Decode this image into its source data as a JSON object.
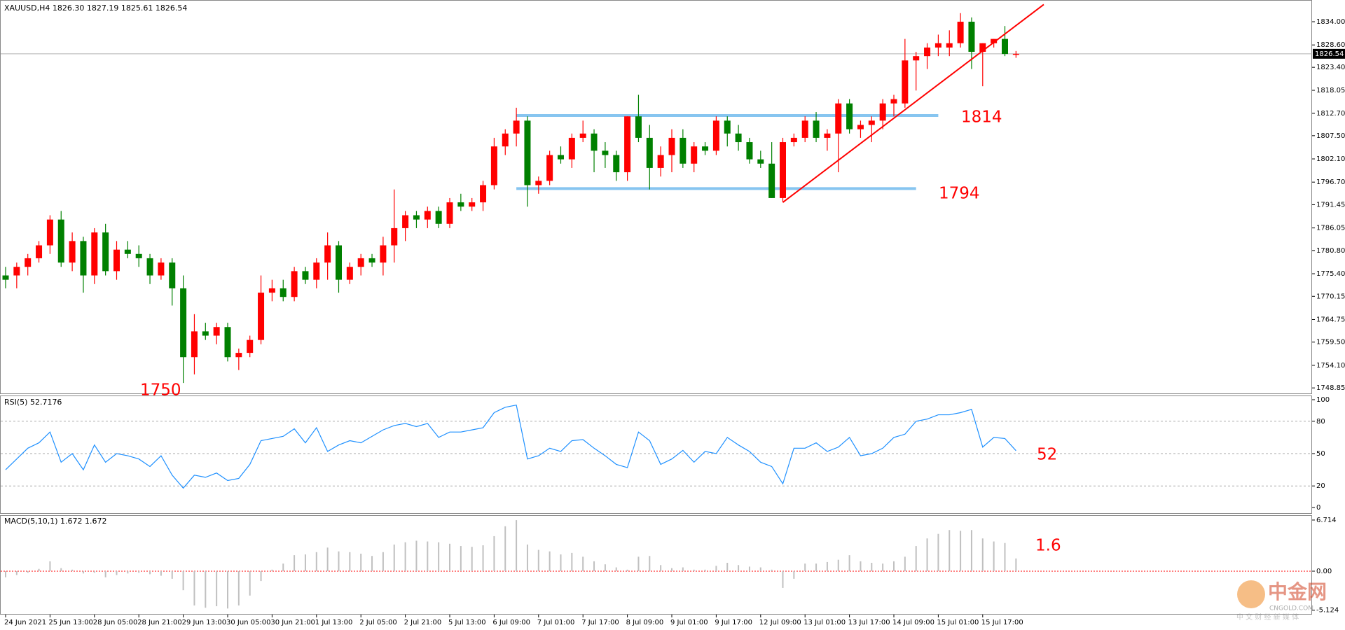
{
  "chart_data": [
    {
      "type": "candlestick",
      "title": "XAUUSD,H4  1826.30 1827.19 1825.61 1826.54",
      "up_color": "#ff0000",
      "down_color": "#008000",
      "categories": [
        "24 Jun 2021",
        null,
        null,
        null,
        "25 Jun 13:00",
        null,
        null,
        null,
        "28 Jun 05:00",
        null,
        null,
        null,
        "28 Jun 21:00",
        null,
        null,
        null,
        "29 Jun 13:00",
        null,
        null,
        null,
        "30 Jun 05:00",
        null,
        null,
        null,
        "30 Jun 21:00",
        null,
        null,
        null,
        "1 Jul 13:00",
        null,
        null,
        null,
        "2 Jul 05:00",
        null,
        null,
        null,
        "2 Jul 21:00",
        null,
        null,
        null,
        "5 Jul 13:00",
        null,
        null,
        null,
        "6 Jul 09:00",
        null,
        null,
        null,
        "7 Jul 01:00",
        null,
        null,
        null,
        "7 Jul 17:00",
        null,
        null,
        null,
        "8 Jul 09:00",
        null,
        null,
        null,
        "9 Jul 01:00",
        null,
        null,
        null,
        "9 Jul 17:00",
        null,
        null,
        null,
        "12 Jul 09:00",
        null,
        null,
        null,
        "13 Jul 01:00",
        null,
        null,
        null,
        "13 Jul 17:00",
        null,
        null,
        null,
        "14 Jul 09:00",
        null,
        null,
        null,
        "15 Jul 01:00",
        null,
        null,
        null,
        "15 Jul 17:00",
        null,
        null,
        null
      ],
      "open": [
        1775,
        1775,
        1777,
        1779,
        1782,
        1788,
        1778,
        1783,
        1775,
        1785,
        1776,
        1781,
        1780,
        1779,
        1775,
        1778,
        1772,
        1756,
        1762,
        1761,
        1763,
        1756,
        1757,
        1760,
        1771,
        1772,
        1770,
        1776,
        1774,
        1778,
        1782,
        1774,
        1777,
        1779,
        1778,
        1782,
        1786,
        1789,
        1788,
        1790,
        1787,
        1792,
        1791,
        1792,
        1796,
        1805,
        1808,
        1811,
        1796,
        1797,
        1803,
        1802,
        1807,
        1808,
        1804,
        1803,
        1799,
        1812,
        1807,
        1800,
        1803,
        1807,
        1801,
        1805,
        1804,
        1811,
        1808,
        1806,
        1802,
        1801,
        1793,
        1806,
        1807,
        1811,
        1807,
        1808,
        1815,
        1809,
        1810,
        1811,
        1815,
        1815,
        1825,
        1826,
        1828,
        1828,
        1829,
        1834,
        1827,
        1829,
        1830,
        1826.3
      ],
      "high": [
        1777,
        1778,
        1780,
        1783,
        1789,
        1790,
        1785,
        1784,
        1786,
        1787,
        1783,
        1783,
        1782,
        1780,
        1779,
        1779,
        1775,
        1766,
        1764,
        1764,
        1764,
        1758,
        1761,
        1775,
        1774,
        1774,
        1777,
        1777,
        1779,
        1785,
        1783,
        1778,
        1780,
        1780,
        1784,
        1795,
        1790,
        1790,
        1791,
        1791,
        1793,
        1794,
        1793,
        1797,
        1807,
        1809,
        1814,
        1812,
        1798,
        1804,
        1805,
        1808,
        1811,
        1809,
        1806,
        1804,
        1812,
        1817,
        1810,
        1805,
        1809,
        1809,
        1806,
        1806,
        1812,
        1812,
        1810,
        1807,
        1804,
        1806,
        1807,
        1808,
        1812,
        1813,
        1809,
        1816,
        1816,
        1811,
        1812,
        1816,
        1817,
        1830,
        1827,
        1829,
        1831,
        1832,
        1836,
        1835,
        1829,
        1830,
        1833,
        1827.19
      ],
      "low": [
        1772,
        1772,
        1775,
        1778,
        1780,
        1777,
        1776,
        1771,
        1773,
        1775,
        1774,
        1779,
        1777,
        1773,
        1774,
        1768,
        1750,
        1752,
        1760,
        1759,
        1755,
        1753,
        1756,
        1759,
        1769,
        1769,
        1769,
        1773,
        1772,
        1774,
        1771,
        1773,
        1775,
        1777,
        1775,
        1778,
        1783,
        1786,
        1786,
        1786,
        1786,
        1790,
        1790,
        1790,
        1795,
        1803,
        1805,
        1791,
        1794,
        1796,
        1801,
        1800,
        1806,
        1799,
        1800,
        1797,
        1797,
        1806,
        1795,
        1798,
        1799,
        1800,
        1799,
        1803,
        1803,
        1805,
        1804,
        1801,
        1800,
        1793,
        1792,
        1805,
        1806,
        1806,
        1804,
        1799,
        1808,
        1807,
        1806,
        1809,
        1812,
        1814,
        1818,
        1823,
        1826,
        1826,
        1828,
        1823,
        1819,
        1828,
        1826,
        1825.61
      ],
      "close": [
        1774,
        1777,
        1779,
        1782,
        1788,
        1778,
        1783,
        1775,
        1785,
        1776,
        1781,
        1780,
        1779,
        1775,
        1778,
        1772,
        1756,
        1762,
        1761,
        1763,
        1756,
        1757,
        1760,
        1771,
        1772,
        1770,
        1776,
        1774,
        1778,
        1782,
        1774,
        1777,
        1779,
        1778,
        1782,
        1786,
        1789,
        1788,
        1790,
        1787,
        1792,
        1791,
        1792,
        1796,
        1805,
        1808,
        1811,
        1796,
        1797,
        1803,
        1802,
        1807,
        1808,
        1804,
        1803,
        1799,
        1812,
        1807,
        1800,
        1803,
        1807,
        1801,
        1805,
        1804,
        1811,
        1808,
        1806,
        1802,
        1801,
        1793,
        1806,
        1807,
        1811,
        1807,
        1808,
        1815,
        1809,
        1810,
        1811,
        1815,
        1816,
        1825,
        1826,
        1828,
        1829,
        1829,
        1834,
        1827,
        1829,
        1830,
        1826.5,
        1826.54
      ],
      "ylim": [
        1747.9,
        1838.4
      ],
      "yticks": [
        {
          "value": 1834,
          "label": "1834.00"
        },
        {
          "value": 1828.6,
          "label": "1828.60"
        },
        {
          "value": 1823.4,
          "label": "1823.40"
        },
        {
          "value": 1818.05,
          "label": "1818.05"
        },
        {
          "value": 1812.7,
          "label": "1812.70"
        },
        {
          "value": 1807.5,
          "label": "1807.50"
        },
        {
          "value": 1802.1,
          "label": "1802.10"
        },
        {
          "value": 1796.7,
          "label": "1796.70"
        },
        {
          "value": 1791.45,
          "label": "1791.45"
        },
        {
          "value": 1786.05,
          "label": "1786.05"
        },
        {
          "value": 1780.8,
          "label": "1780.80"
        },
        {
          "value": 1775.4,
          "label": "1775.40"
        },
        {
          "value": 1770.15,
          "label": "1770.15"
        },
        {
          "value": 1764.75,
          "label": "1764.75"
        },
        {
          "value": 1759.5,
          "label": "1759.50"
        },
        {
          "value": 1754.1,
          "label": "1754.10"
        },
        {
          "value": 1748.85,
          "label": "1748.85"
        }
      ],
      "last_price": 1826.54,
      "levels": [
        {
          "value": 1812.2,
          "from": 46,
          "to": 84,
          "color": "#87c5f0"
        },
        {
          "value": 1795.2,
          "from": 46,
          "to": 82,
          "color": "#87c5f0"
        }
      ],
      "trendline": {
        "x": [
          70,
          93.5
        ],
        "y": [
          1792,
          1838
        ],
        "color": "#ff0000"
      },
      "annotations": [
        "1750",
        "1814",
        "1794"
      ]
    },
    {
      "type": "line",
      "title": "RSI(5) 52.7176",
      "color": "#1e90ff",
      "values": [
        35,
        45,
        55,
        60,
        70,
        42,
        50,
        35,
        58,
        42,
        50,
        48,
        45,
        38,
        48,
        30,
        18,
        30,
        28,
        32,
        25,
        27,
        40,
        62,
        64,
        66,
        73,
        60,
        74,
        52,
        58,
        62,
        60,
        66,
        72,
        76,
        78,
        75,
        78,
        65,
        70,
        70,
        72,
        74,
        88,
        93,
        95,
        45,
        48,
        55,
        52,
        62,
        63,
        55,
        48,
        40,
        37,
        70,
        62,
        40,
        45,
        53,
        42,
        52,
        50,
        65,
        58,
        52,
        42,
        38,
        22,
        55,
        55,
        60,
        52,
        56,
        65,
        48,
        50,
        55,
        65,
        68,
        80,
        82,
        86,
        86,
        88,
        91,
        56,
        65,
        64,
        52.7176
      ],
      "ylim": [
        0,
        100
      ],
      "yticks": [
        100,
        80,
        50,
        20,
        0
      ],
      "grid": true,
      "annotations": [
        "52"
      ]
    },
    {
      "type": "bar",
      "title": "MACD(5,10,1) 1.672 1.672",
      "color": "#c0c0c0",
      "zero_line_color": "#ff0000",
      "values": [
        -0.8,
        -0.5,
        -0.2,
        0.3,
        1.3,
        0.4,
        0.2,
        -0.3,
        -0.2,
        -0.8,
        -0.5,
        -0.3,
        -0.2,
        -0.4,
        -0.6,
        -1.0,
        -2.5,
        -4.5,
        -4.8,
        -4.6,
        -4.9,
        -4.5,
        -3.2,
        -1.3,
        0.2,
        1.0,
        2.1,
        2.2,
        2.5,
        3.1,
        2.6,
        2.5,
        2.3,
        2.0,
        2.5,
        3.5,
        3.8,
        4.0,
        3.9,
        3.8,
        3.6,
        3.3,
        3.2,
        3.4,
        4.6,
        5.9,
        6.7,
        3.5,
        2.8,
        2.6,
        2.2,
        2.4,
        1.9,
        1.3,
        0.9,
        0.5,
        0.2,
        1.9,
        2.0,
        0.8,
        0.4,
        0.5,
        0.2,
        0.2,
        0.7,
        1.1,
        0.8,
        0.6,
        0.5,
        0.2,
        -2.2,
        -1.0,
        1.0,
        1.0,
        1.2,
        1.5,
        2.1,
        1.3,
        1.1,
        1.0,
        1.3,
        1.9,
        3.3,
        4.3,
        4.9,
        5.4,
        5.3,
        5.4,
        4.3,
        3.9,
        3.7,
        1.672
      ],
      "ylim": [
        -5.7,
        7.35
      ],
      "yticks": [
        6.714,
        {
          "value": 0,
          "label": "0.00"
        },
        -5.124
      ],
      "annotations": [
        "1.6"
      ]
    }
  ],
  "watermark": {
    "name": "中金网",
    "site": "CNGOLD.COM",
    "slogan": "中 文 财 经 新 媒 体"
  }
}
